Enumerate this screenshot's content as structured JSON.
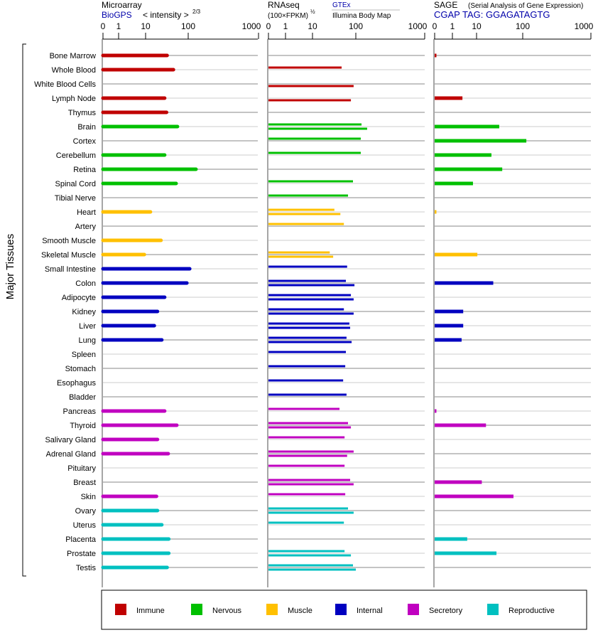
{
  "panels": {
    "microarray": {
      "title": "Microarray",
      "source": "BioGPS",
      "scale_label": "< intensity >",
      "exponent": "2/3"
    },
    "rnaseq": {
      "title": "RNAseq",
      "scale_label": "(100×FPKM)",
      "exponent": "½",
      "source1": "GTEx",
      "source2": "Illumina Body Map"
    },
    "sage": {
      "title": "SAGE",
      "subtitle": "(Serial Analysis of Gene Expression)",
      "tag": "CGAP TAG: GGAGATAGTG"
    }
  },
  "chart_data": {
    "type": "bar",
    "ylabel": "Major Tissues",
    "tick_labels": [
      "0",
      "1",
      "10",
      "100",
      "1000"
    ],
    "tick_values": [
      0,
      1,
      10,
      100,
      1000
    ],
    "groups": {
      "Immune": "#c00000",
      "Nervous": "#00c000",
      "Muscle": "#ffc000",
      "Internal": "#0000c0",
      "Secretory": "#c000c0",
      "Reproductive": "#00c0c0"
    },
    "legend": [
      "Immune",
      "Nervous",
      "Muscle",
      "Internal",
      "Secretory",
      "Reproductive"
    ],
    "tissues": [
      {
        "name": "Bone Marrow",
        "group": "Immune",
        "microarray": 32,
        "rnaseq": [
          null,
          null
        ],
        "sage": 0.1
      },
      {
        "name": "Whole Blood",
        "group": "Immune",
        "microarray": 45,
        "rnaseq": [
          47,
          null
        ],
        "sage": null
      },
      {
        "name": "White Blood Cells",
        "group": "Immune",
        "microarray": null,
        "rnaseq": [
          null,
          89
        ],
        "sage": null
      },
      {
        "name": "Lymph Node",
        "group": "Immune",
        "microarray": 28,
        "rnaseq": [
          null,
          77
        ],
        "sage": 2.6
      },
      {
        "name": "Thymus",
        "group": "Immune",
        "microarray": 31,
        "rnaseq": [
          null,
          null
        ],
        "sage": null
      },
      {
        "name": "Brain",
        "group": "Nervous",
        "microarray": 56,
        "rnaseq": [
          121,
          146
        ],
        "sage": 31
      },
      {
        "name": "Cortex",
        "group": "Nervous",
        "microarray": null,
        "rnaseq": [
          118,
          null
        ],
        "sage": 113
      },
      {
        "name": "Cerebellum",
        "group": "Nervous",
        "microarray": 28,
        "rnaseq": [
          118,
          null
        ],
        "sage": 21
      },
      {
        "name": "Retina",
        "group": "Nervous",
        "microarray": 129,
        "rnaseq": [
          null,
          null
        ],
        "sage": 36
      },
      {
        "name": "Spinal Cord",
        "group": "Nervous",
        "microarray": 52,
        "rnaseq": [
          86,
          null
        ],
        "sage": 7.1
      },
      {
        "name": "Tibial Nerve",
        "group": "Nervous",
        "microarray": null,
        "rnaseq": [
          66,
          null
        ],
        "sage": null
      },
      {
        "name": "Heart",
        "group": "Muscle",
        "microarray": 13,
        "rnaseq": [
          32,
          44
        ],
        "sage": 0.1
      },
      {
        "name": "Artery",
        "group": "Muscle",
        "microarray": null,
        "rnaseq": [
          53,
          null
        ],
        "sage": null
      },
      {
        "name": "Smooth Muscle",
        "group": "Muscle",
        "microarray": 23,
        "rnaseq": [
          null,
          null
        ],
        "sage": null
      },
      {
        "name": "Skeletal Muscle",
        "group": "Muscle",
        "microarray": 9,
        "rnaseq": [
          25,
          30
        ],
        "sage": 10.4
      },
      {
        "name": "Small Intestine",
        "group": "Internal",
        "microarray": 105,
        "rnaseq": [
          63,
          null
        ],
        "sage": null
      },
      {
        "name": "Colon",
        "group": "Internal",
        "microarray": 93,
        "rnaseq": [
          59,
          93
        ],
        "sage": 23
      },
      {
        "name": "Adipocyte",
        "group": "Internal",
        "microarray": 28,
        "rnaseq": [
          77,
          89
        ],
        "sage": null
      },
      {
        "name": "Kidney",
        "group": "Internal",
        "microarray": 19,
        "rnaseq": [
          53,
          89
        ],
        "sage": 2.8
      },
      {
        "name": "Liver",
        "group": "Internal",
        "microarray": 16,
        "rnaseq": [
          71,
          74
        ],
        "sage": 2.8
      },
      {
        "name": "Lung",
        "group": "Internal",
        "microarray": 24,
        "rnaseq": [
          61,
          80
        ],
        "sage": 2.4
      },
      {
        "name": "Spleen",
        "group": "Internal",
        "microarray": null,
        "rnaseq": [
          59,
          null
        ],
        "sage": null
      },
      {
        "name": "Stomach",
        "group": "Internal",
        "microarray": null,
        "rnaseq": [
          57,
          null
        ],
        "sage": null
      },
      {
        "name": "Esophagus",
        "group": "Internal",
        "microarray": null,
        "rnaseq": [
          51,
          null
        ],
        "sage": null
      },
      {
        "name": "Bladder",
        "group": "Internal",
        "microarray": null,
        "rnaseq": [
          61,
          null
        ],
        "sage": null
      },
      {
        "name": "Pancreas",
        "group": "Secretory",
        "microarray": 28,
        "rnaseq": [
          42,
          null
        ],
        "sage": 0.1
      },
      {
        "name": "Thyroid",
        "group": "Secretory",
        "microarray": 54,
        "rnaseq": [
          66,
          77
        ],
        "sage": 16
      },
      {
        "name": "Salivary Gland",
        "group": "Secretory",
        "microarray": 19,
        "rnaseq": [
          55,
          null
        ],
        "sage": null
      },
      {
        "name": "Adrenal Gland",
        "group": "Secretory",
        "microarray": 34,
        "rnaseq": [
          89,
          63
        ],
        "sage": null
      },
      {
        "name": "Pituitary",
        "group": "Secretory",
        "microarray": null,
        "rnaseq": [
          55,
          null
        ],
        "sage": null
      },
      {
        "name": "Breast",
        "group": "Secretory",
        "microarray": null,
        "rnaseq": [
          74,
          89
        ],
        "sage": 13
      },
      {
        "name": "Skin",
        "group": "Secretory",
        "microarray": 18,
        "rnaseq": [
          57,
          null
        ],
        "sage": 63
      },
      {
        "name": "Ovary",
        "group": "Reproductive",
        "microarray": 19,
        "rnaseq": [
          66,
          89
        ],
        "sage": null
      },
      {
        "name": "Uterus",
        "group": "Reproductive",
        "microarray": 24,
        "rnaseq": [
          53,
          null
        ],
        "sage": null
      },
      {
        "name": "Placenta",
        "group": "Reproductive",
        "microarray": 35,
        "rnaseq": [
          null,
          null
        ],
        "sage": 4.1
      },
      {
        "name": "Prostate",
        "group": "Reproductive",
        "microarray": 35,
        "rnaseq": [
          55,
          77
        ],
        "sage": 27
      },
      {
        "name": "Testis",
        "group": "Reproductive",
        "microarray": 32,
        "rnaseq": [
          86,
          100
        ],
        "sage": null
      }
    ]
  }
}
